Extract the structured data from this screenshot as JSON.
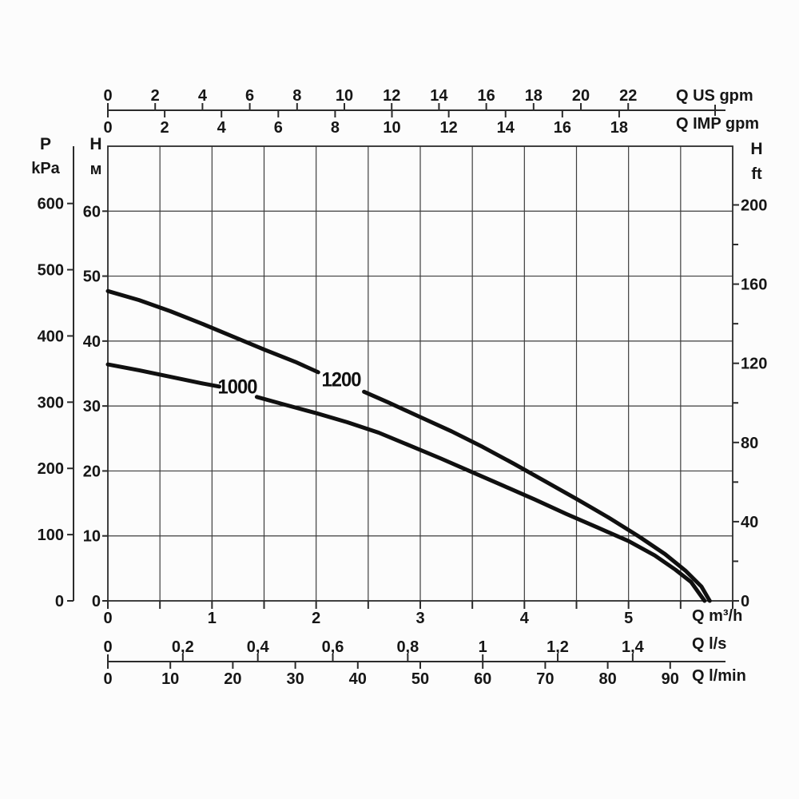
{
  "header_labels": {
    "pressure_symbol": "P",
    "pressure_unit": "kPa",
    "head_left_symbol": "H",
    "head_left_unit": "м",
    "head_right_symbol": "H",
    "head_right_unit": "ft",
    "flow_m3h": "Q m³/h",
    "flow_ls": "Q l/s",
    "flow_lmin": "Q l/min",
    "flow_us_gpm": "Q US gpm",
    "flow_imp_gpm": "Q IMP gpm"
  },
  "chart_data": {
    "type": "line",
    "title": "",
    "xlabel": "Q m³/h",
    "ylabel": "H м",
    "xlim": [
      0,
      6
    ],
    "ylim": [
      0,
      70
    ],
    "grid": "on",
    "x_axis": {
      "label": "Q m³/h",
      "gridline_step": 0.5,
      "tick_values": [
        0,
        1,
        2,
        3,
        4,
        5
      ],
      "tick_labels": [
        "0",
        "1",
        "2",
        "3",
        "4",
        "5"
      ]
    },
    "y_axis": {
      "label": "H м",
      "gridline_step": 10,
      "tick_values": [
        0,
        10,
        20,
        30,
        40,
        50,
        60
      ],
      "tick_labels": [
        "0",
        "10",
        "20",
        "30",
        "40",
        "50",
        "60"
      ]
    },
    "left_pressure_axis": {
      "label": "P kPa",
      "m_per_kpa": 0.10197,
      "tick_values": [
        0,
        100,
        200,
        300,
        400,
        500,
        600
      ],
      "tick_labels": [
        "0",
        "100",
        "200",
        "300",
        "400",
        "500",
        "600"
      ]
    },
    "right_axis": {
      "label": "H ft",
      "m_per_ft": 0.3048,
      "major_tick_values": [
        0,
        40,
        80,
        120,
        160,
        200
      ],
      "major_tick_labels": [
        "0",
        "40",
        "80",
        "120",
        "160",
        "200"
      ],
      "minor_tick_values": [
        20,
        60,
        100,
        140,
        180
      ]
    },
    "top_us_gpm_axis": {
      "label": "Q US gpm",
      "gpm_per_m3h": 4.403,
      "tick_values": [
        0,
        2,
        4,
        6,
        8,
        10,
        12,
        14,
        16,
        18,
        20,
        22
      ],
      "tick_labels": [
        "0",
        "2",
        "4",
        "6",
        "8",
        "10",
        "12",
        "14",
        "16",
        "18",
        "20",
        "22"
      ]
    },
    "top_imp_gpm_axis": {
      "label": "Q IMP gpm",
      "gpm_per_m3h": 3.666,
      "tick_values": [
        0,
        2,
        4,
        6,
        8,
        10,
        12,
        14,
        16,
        18
      ],
      "tick_labels": [
        "0",
        "2",
        "4",
        "6",
        "8",
        "10",
        "12",
        "14",
        "16",
        "18"
      ]
    },
    "bottom_ls_axis": {
      "label": "Q l/s",
      "ls_per_m3h": 0.27778,
      "tick_values": [
        0,
        0.2,
        0.4,
        0.6,
        0.8,
        1.0,
        1.2,
        1.4
      ],
      "tick_labels": [
        "0",
        "0,2",
        "0,4",
        "0,6",
        "0,8",
        "1",
        "1,2",
        "1,4"
      ]
    },
    "bottom_lmin_axis": {
      "label": "Q l/min",
      "lmin_per_m3h": 16.6667,
      "tick_values": [
        0,
        10,
        20,
        30,
        40,
        50,
        60,
        70,
        80,
        90
      ],
      "tick_labels": [
        "0",
        "10",
        "20",
        "30",
        "40",
        "50",
        "60",
        "70",
        "80",
        "90"
      ]
    },
    "series": [
      {
        "name": "1200",
        "label": "1200",
        "label_xy": [
          2.24,
          33.9
        ],
        "segments": [
          [
            [
              0,
              47.7
            ],
            [
              0.3,
              46.3
            ],
            [
              0.6,
              44.6
            ],
            [
              0.9,
              42.7
            ],
            [
              1.2,
              40.7
            ],
            [
              1.5,
              38.7
            ],
            [
              1.8,
              36.8
            ],
            [
              2.02,
              35.2
            ]
          ],
          [
            [
              2.46,
              32.2
            ],
            [
              2.7,
              30.5
            ],
            [
              3.0,
              28.3
            ],
            [
              3.3,
              26.1
            ],
            [
              3.6,
              23.7
            ],
            [
              3.9,
              21.1
            ],
            [
              4.2,
              18.4
            ],
            [
              4.5,
              15.7
            ],
            [
              4.8,
              12.9
            ],
            [
              5.1,
              9.9
            ],
            [
              5.35,
              7.2
            ],
            [
              5.55,
              4.6
            ],
            [
              5.7,
              2.2
            ],
            [
              5.78,
              0
            ]
          ]
        ]
      },
      {
        "name": "1000",
        "label": "1000",
        "label_xy": [
          1.24,
          32.8
        ],
        "segments": [
          [
            [
              0,
              36.4
            ],
            [
              0.3,
              35.5
            ],
            [
              0.6,
              34.5
            ],
            [
              0.9,
              33.5
            ],
            [
              1.07,
              33.0
            ]
          ],
          [
            [
              1.43,
              31.4
            ],
            [
              1.7,
              30.2
            ],
            [
              2.0,
              28.9
            ],
            [
              2.3,
              27.5
            ],
            [
              2.6,
              25.9
            ],
            [
              2.9,
              23.9
            ],
            [
              3.2,
              21.9
            ],
            [
              3.5,
              19.8
            ],
            [
              3.8,
              17.7
            ],
            [
              4.1,
              15.6
            ],
            [
              4.4,
              13.4
            ],
            [
              4.7,
              11.3
            ],
            [
              5.0,
              9.2
            ],
            [
              5.25,
              7.0
            ],
            [
              5.45,
              4.8
            ],
            [
              5.6,
              2.9
            ],
            [
              5.73,
              0
            ]
          ]
        ]
      }
    ],
    "colors": {
      "curve": "#101010",
      "grid": "#3d3d3d",
      "axis": "#2b2b2b",
      "text": "#161616"
    }
  }
}
